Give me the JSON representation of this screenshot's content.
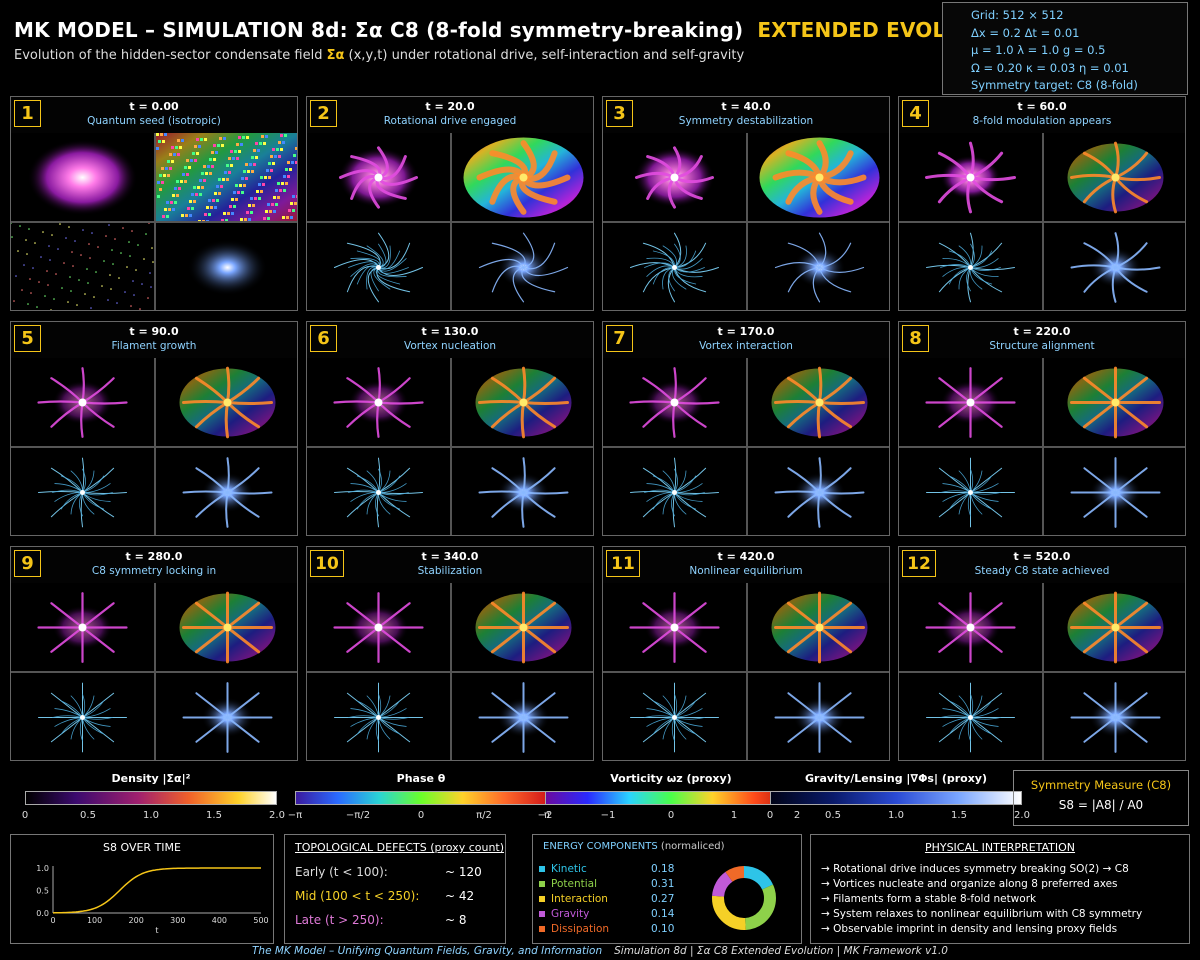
{
  "header": {
    "title": "MK MODEL – SIMULATION 8d:  Σα  C8  (8-fold symmetry-breaking)",
    "title_highlight": "EXTENDED EVOLUTION",
    "subtitle_pre": "Evolution of the hidden-sector condensate field",
    "subtitle_sym": "Σα",
    "subtitle_post": "(x,y,t) under rotational drive, self-interaction and self-gravity"
  },
  "params": {
    "grid": "Grid: 512 × 512",
    "line2": "Δx = 0.2    Δt = 0.01",
    "line3": "μ = 1.0    λ = 1.0    g = 0.5",
    "line4": "Ω = 0.20    κ = 0.03    η = 0.01",
    "line5": "Symmetry target: C8 (8-fold)"
  },
  "panels": [
    {
      "num": "1",
      "time": "t = 0.00",
      "label": "Quantum seed (isotropic)",
      "stage": 0
    },
    {
      "num": "2",
      "time": "t = 20.0",
      "label": "Rotational drive engaged",
      "stage": 1
    },
    {
      "num": "3",
      "time": "t = 40.0",
      "label": "Symmetry destabilization",
      "stage": 2
    },
    {
      "num": "4",
      "time": "t = 60.0",
      "label": "8-fold modulation appears",
      "stage": 3
    },
    {
      "num": "5",
      "time": "t = 90.0",
      "label": "Filament growth",
      "stage": 4
    },
    {
      "num": "6",
      "time": "t = 130.0",
      "label": "Vortex nucleation",
      "stage": 4
    },
    {
      "num": "7",
      "time": "t = 170.0",
      "label": "Vortex interaction",
      "stage": 4
    },
    {
      "num": "8",
      "time": "t = 220.0",
      "label": "Structure alignment",
      "stage": 5
    },
    {
      "num": "9",
      "time": "t = 280.0",
      "label": "C8 symmetry locking in",
      "stage": 5
    },
    {
      "num": "10",
      "time": "t = 340.0",
      "label": "Stabilization",
      "stage": 5
    },
    {
      "num": "11",
      "time": "t = 420.0",
      "label": "Nonlinear equilibrium",
      "stage": 5
    },
    {
      "num": "12",
      "time": "t = 520.0",
      "label": "Steady C8 state achieved",
      "stage": 5
    }
  ],
  "colorbars": [
    {
      "label": "Density |Σα|²",
      "ticks": [
        "0",
        "0.5",
        "1.0",
        "1.5",
        "2.0"
      ]
    },
    {
      "label": "Phase θ",
      "ticks": [
        "−π",
        "−π/2",
        "0",
        "π/2",
        "π"
      ]
    },
    {
      "label": "Vorticity ωz (proxy)",
      "ticks": [
        "−2",
        "−1",
        "0",
        "1",
        "2"
      ]
    },
    {
      "label": "Gravity/Lensing |∇Φs| (proxy)",
      "ticks": [
        "0",
        "0.5",
        "1.0",
        "1.5",
        "2.0"
      ]
    }
  ],
  "symmetry_measure": {
    "title": "Symmetry Measure (C8)",
    "formula": "S8 = |A8| / A0"
  },
  "s8_plot": {
    "title": "S8 OVER TIME",
    "xlabel": "t",
    "xticks": [
      "0",
      "100",
      "200",
      "300",
      "400",
      "500"
    ],
    "yticks": [
      "0.0",
      "0.5",
      "1.0"
    ]
  },
  "topological_defects": {
    "title": "TOPOLOGICAL DEFECTS (proxy count)",
    "rows": [
      {
        "label": "Early (t < 100):",
        "value": "~ 120"
      },
      {
        "label": "Mid  (100 < t < 250):",
        "value": "~  42"
      },
      {
        "label": "Late  (t > 250):",
        "value": "~   8"
      }
    ]
  },
  "energy": {
    "title": "ENERGY COMPONENTS",
    "title_note": "(normaliced)",
    "rows": [
      {
        "label": "Kinetic",
        "value": "0.18",
        "color": "#2ec4e8"
      },
      {
        "label": "Potential",
        "value": "0.31",
        "color": "#8ed14a"
      },
      {
        "label": "Interaction",
        "value": "0.27",
        "color": "#f5d027"
      },
      {
        "label": "Gravity",
        "value": "0.14",
        "color": "#c05ad8"
      },
      {
        "label": "Dissipation",
        "value": "0.10",
        "color": "#f06a28"
      }
    ]
  },
  "physical": {
    "title": "PHYSICAL INTERPRETATION",
    "lines": [
      "→ Rotational drive induces symmetry breaking SO(2) → C8",
      "→ Vortices nucleate and organize along 8 preferred axes",
      "→ Filaments form a stable 8-fold network",
      "→ System relaxes to nonlinear equilibrium with C8 symmetry",
      "→ Observable imprint in density and lensing proxy fields"
    ]
  },
  "footer": {
    "left": "The MK Model – Unifying Quantum Fields, Gravity, and Information",
    "mid": "Simulation 8d  |  Σα C8 Extended Evolution  |  MK Framework v1.0"
  }
}
